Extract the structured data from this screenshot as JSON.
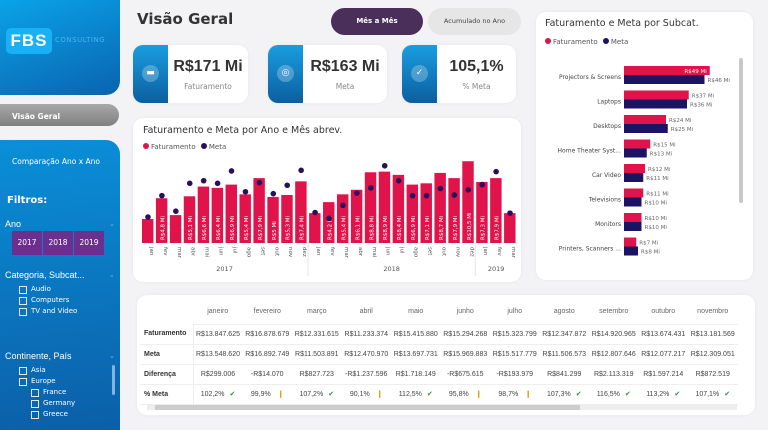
{
  "brand": {
    "logo": "FBS",
    "logo_sub": "CONSULTING"
  },
  "nav": {
    "visao_geral": "Visão Geral",
    "comparacao": "Comparação Ano x Ano"
  },
  "filters": {
    "title": "Filtros:",
    "ano_label": "Ano",
    "years": [
      "2017",
      "2018",
      "2019"
    ],
    "categoria_label": "Categoria, Subcat...",
    "categorias": [
      "Audio",
      "Computers",
      "TV and Video"
    ],
    "continente_label": "Continente, País",
    "continentes": [
      "Asia",
      "Europe"
    ],
    "paises": [
      "France",
      "Germany",
      "Greece"
    ]
  },
  "header": {
    "title": "Visão Geral",
    "toggle_active": "Mês a Mês",
    "toggle_inactive": "Acumulado no Ano"
  },
  "kpis": [
    {
      "value": "R$171 Mi",
      "label": "Faturamento",
      "icon": "cash-register-icon"
    },
    {
      "value": "R$163 Mi",
      "label": "Meta",
      "icon": "target-icon"
    },
    {
      "value": "105,1%",
      "label": "% Meta",
      "icon": "check-badge-icon"
    }
  ],
  "colors": {
    "faturamento": "#e0134a",
    "meta": "#1b1464",
    "meta_month": "#2a0f5c",
    "accent": "#4a2f5b"
  },
  "chart_data": [
    {
      "type": "bar",
      "title": "Faturamento e Meta por Ano e Mês abrev.",
      "legend": [
        "Faturamento",
        "Meta"
      ],
      "legend_position": "top-left",
      "categories": [
        "jan",
        "fev",
        "mar",
        "abr",
        "mai",
        "jun",
        "jul",
        "ago",
        "set",
        "out",
        "nov",
        "dez",
        "jan",
        "fev",
        "mar",
        "abr",
        "mai",
        "jun",
        "jul",
        "ago",
        "set",
        "out",
        "nov",
        "dez",
        "jan",
        "fev",
        "mar"
      ],
      "year_groups": [
        {
          "year": "2017",
          "count": 12
        },
        {
          "year": "2018",
          "count": 12
        },
        {
          "year": "2019",
          "count": 3
        }
      ],
      "ylim": [
        -2.1,
        11
      ],
      "series": [
        {
          "name": "Faturamento",
          "values": [
            1.6,
            4.8,
            2.2,
            5.1,
            6.6,
            6.4,
            6.9,
            5.4,
            7.9,
            5.0,
            5.3,
            7.4,
            2.5,
            4.2,
            5.4,
            6.1,
            8.8,
            8.9,
            8.4,
            6.9,
            7.1,
            8.7,
            7.9,
            10.5,
            7.3,
            7.9,
            2.5
          ]
        },
        {
          "name": "Meta",
          "values": [
            1.9,
            5.2,
            2.8,
            7.1,
            7.5,
            7.1,
            9.0,
            5.8,
            7.2,
            5.5,
            6.8,
            9.1,
            2.6,
            1.7,
            3.7,
            5.6,
            6.4,
            9.8,
            7.5,
            5.2,
            5.2,
            6.3,
            5.3,
            6.1,
            6.9,
            8.9,
            2.5
          ]
        }
      ]
    },
    {
      "type": "bar",
      "orientation": "horizontal",
      "title": "Faturamento e Meta por Subcat.",
      "legend": [
        "Faturamento",
        "Meta"
      ],
      "legend_position": "top-left",
      "categories": [
        "Projectors & Screens",
        "Laptops",
        "Desktops",
        "Home Theater Syst...",
        "Car Video",
        "Televisions",
        "Monitors",
        "Printers, Scanners ..."
      ],
      "series": [
        {
          "name": "Faturamento",
          "values": [
            49,
            37,
            24,
            15,
            12,
            11,
            10,
            7
          ],
          "labels": [
            "R$49 Mi",
            "R$37 Mi",
            "R$24 Mi",
            "R$15 Mi",
            "R$12 Mi",
            "R$11 Mi",
            "R$10 Mi",
            "R$7 Mi"
          ]
        },
        {
          "name": "Meta",
          "values": [
            46,
            36,
            25,
            13,
            11,
            10,
            10,
            8
          ],
          "labels": [
            "R$46 Mi",
            "R$36 Mi",
            "R$25 Mi",
            "R$13 Mi",
            "R$11 Mi",
            "R$10 Mi",
            "R$10 Mi",
            "R$8 Mi"
          ]
        }
      ]
    }
  ],
  "table": {
    "columns": [
      "janeiro",
      "fevereiro",
      "março",
      "abril",
      "maio",
      "junho",
      "julho",
      "agosto",
      "setembro",
      "outubro",
      "novembro"
    ],
    "rows": [
      {
        "label": "Faturamento",
        "values": [
          "R$13.847.625",
          "R$16.878.679",
          "R$12.331.615",
          "R$11.233.374",
          "R$15.415.880",
          "R$15.294.268",
          "R$15.323.799",
          "R$12.347.872",
          "R$14.920.965",
          "R$13.674.431",
          "R$13.181.569"
        ]
      },
      {
        "label": "Meta",
        "values": [
          "R$13.548.620",
          "R$16.892.749",
          "R$11.503.891",
          "R$12.470.970",
          "R$13.697.731",
          "R$15.969.883",
          "R$15.517.779",
          "R$11.506.573",
          "R$12.807.646",
          "R$12.077.217",
          "R$12.309.051"
        ]
      },
      {
        "label": "Diferença",
        "values": [
          "R$299.006",
          "-R$14.070",
          "R$827.723",
          "-R$1.237.596",
          "R$1.718.149",
          "-R$675.615",
          "-R$193.979",
          "R$841.299",
          "R$2.113.319",
          "R$1.597.214",
          "R$872.519"
        ]
      },
      {
        "label": "% Meta",
        "values": [
          "102,2%",
          "99,9%",
          "107,2%",
          "90,1%",
          "112,5%",
          "95,8%",
          "98,7%",
          "107,3%",
          "116,5%",
          "113,2%",
          "107,1%"
        ],
        "status": [
          "ok",
          "warn",
          "ok",
          "warn",
          "ok",
          "warn",
          "warn",
          "ok",
          "ok",
          "ok",
          "ok"
        ]
      }
    ]
  }
}
